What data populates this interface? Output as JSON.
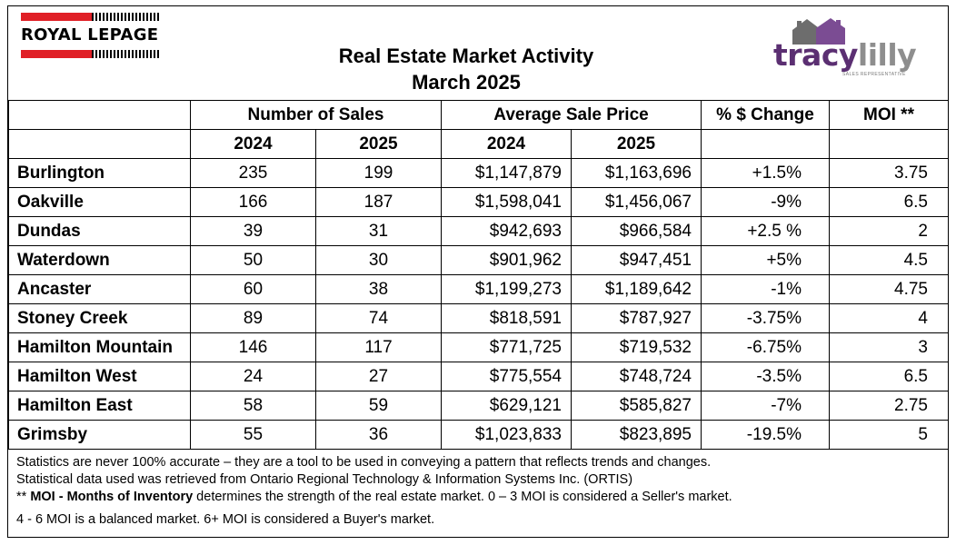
{
  "logos": {
    "royal_lepage": "ROYAL LEPAGE",
    "tracylilly_word_part1": "tracy",
    "tracylilly_word_part2": "lilly",
    "tracylilly_subtitle": "SALES REPRESENTATIVE"
  },
  "title": {
    "line1": "Real Estate Market Activity",
    "line2": "March 2025"
  },
  "table": {
    "group_headers": {
      "sales": "Number of Sales",
      "price": "Average Sale Price",
      "change": "% $ Change",
      "moi": "MOI **"
    },
    "year_headers": {
      "sales_2024": "2024",
      "sales_2025": "2025",
      "price_2024": "2024",
      "price_2025": "2025"
    },
    "rows": [
      {
        "area": "Burlington",
        "sales_2024": "235",
        "sales_2025": "199",
        "price_2024": "$1,147,879",
        "price_2025": "$1,163,696",
        "change": "+1.5%",
        "moi": "3.75"
      },
      {
        "area": "Oakville",
        "sales_2024": "166",
        "sales_2025": "187",
        "price_2024": "$1,598,041",
        "price_2025": "$1,456,067",
        "change": "-9%",
        "moi": "6.5"
      },
      {
        "area": "Dundas",
        "sales_2024": "39",
        "sales_2025": "31",
        "price_2024": "$942,693",
        "price_2025": "$966,584",
        "change": "+2.5 %",
        "moi": "2"
      },
      {
        "area": "Waterdown",
        "sales_2024": "50",
        "sales_2025": "30",
        "price_2024": "$901,962",
        "price_2025": "$947,451",
        "change": "+5%",
        "moi": "4.5"
      },
      {
        "area": "Ancaster",
        "sales_2024": "60",
        "sales_2025": "38",
        "price_2024": "$1,199,273",
        "price_2025": "$1,189,642",
        "change": "-1%",
        "moi": "4.75"
      },
      {
        "area": "Stoney Creek",
        "sales_2024": "89",
        "sales_2025": "74",
        "price_2024": "$818,591",
        "price_2025": "$787,927",
        "change": "-3.75%",
        "moi": "4"
      },
      {
        "area": "Hamilton Mountain",
        "sales_2024": "146",
        "sales_2025": "117",
        "price_2024": "$771,725",
        "price_2025": "$719,532",
        "change": "-6.75%",
        "moi": "3"
      },
      {
        "area": "Hamilton West",
        "sales_2024": "24",
        "sales_2025": "27",
        "price_2024": "$775,554",
        "price_2025": "$748,724",
        "change": "-3.5%",
        "moi": "6.5"
      },
      {
        "area": "Hamilton East",
        "sales_2024": "58",
        "sales_2025": "59",
        "price_2024": "$629,121",
        "price_2025": "$585,827",
        "change": "-7%",
        "moi": "2.75"
      },
      {
        "area": "Grimsby",
        "sales_2024": "55",
        "sales_2025": "36",
        "price_2024": "$1,023,833",
        "price_2025": "$823,895",
        "change": "-19.5%",
        "moi": "5"
      }
    ]
  },
  "notes": {
    "line1": "Statistics are never 100% accurate – they are a tool to be used in conveying a pattern that reflects trends and changes.",
    "line2": "Statistical data used was retrieved from Ontario Regional Technology & Information Systems Inc. (ORTIS)",
    "line3_prefix": "** ",
    "line3_bold": "MOI - Months of Inventory",
    "line3_rest": " determines the strength of the real estate market. 0 – 3 MOI is considered a Seller's market.",
    "line4": "4 - 6 MOI is a balanced market. 6+ MOI is considered a Buyer's market."
  },
  "colors": {
    "royal_lepage_red": "#e01f26",
    "tracy_purple": "#5b2f72",
    "lilly_gray": "#8e8e8e",
    "house_purple": "#7b4c93",
    "house_gray": "#6d6d6d"
  }
}
